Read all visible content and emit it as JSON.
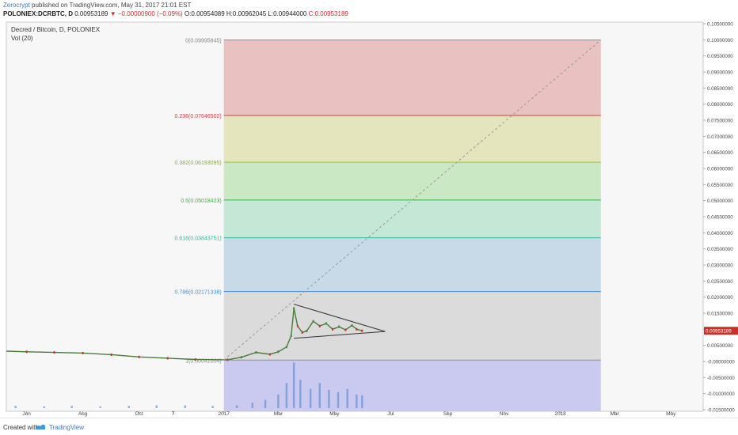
{
  "header": {
    "publisher": "Zerocrypt",
    "published_text": "published on TradingView.com, May 31, 2017 21:01 EST",
    "symbol": "POLONIEX:DCRBTC, D",
    "last": "0.00953189",
    "change": "▼ −0.00000900 (−0.09%)",
    "open": "O:0.00954089",
    "high": "H:0.00962045",
    "low": "L:0.00944000",
    "close": "C:0.00953189"
  },
  "legend": {
    "title": "Decred / Bitcoin, D, POLONIEX",
    "volume": "Vol (20)"
  },
  "footer": {
    "created_with": "Created with",
    "brand": "TradingView"
  },
  "chart_data": {
    "type": "candlestick",
    "title": "Decred / Bitcoin, D, POLONIEX",
    "price_axis": {
      "ylim": [
        -0.0155,
        0.1055
      ],
      "ticks": [
        0.105,
        0.1,
        0.095,
        0.09,
        0.085,
        0.08,
        0.075,
        0.07,
        0.065,
        0.06,
        0.055,
        0.05,
        0.045,
        0.04,
        0.035,
        0.03,
        0.025,
        0.02,
        0.015,
        0.01,
        0.005,
        0.0,
        -0.005,
        -0.01,
        -0.015
      ],
      "tick_labels": [
        "0.10500000",
        "0.10000000",
        "0.09500000",
        "0.09000000",
        "0.08500000",
        "0.08000000",
        "0.07500000",
        "0.07000000",
        "0.06500000",
        "0.06000000",
        "0.05500000",
        "0.05000000",
        "0.04500000",
        "0.04000000",
        "0.03500000",
        "0.03000000",
        "0.02500000",
        "0.02000000",
        "0.01500000",
        "0.01000000",
        "0.00500000",
        "-0.00000000",
        "-0.00500000",
        "-0.01000000",
        "-0.01500000"
      ],
      "last_price_label": "0.00953189",
      "last_price": 0.00953189,
      "last_price_color": "#c8302b"
    },
    "time_axis": {
      "xlim": [
        "2016-05-10",
        "2018-06-05"
      ],
      "ticks": [
        {
          "date": "2016-06-01",
          "label": "Jun"
        },
        {
          "date": "2016-08-01",
          "label": "Aug"
        },
        {
          "date": "2016-10-01",
          "label": "Oct"
        },
        {
          "date": "2016-11-07",
          "label": "7"
        },
        {
          "date": "2017-01-01",
          "label": "2017"
        },
        {
          "date": "2017-03-01",
          "label": "Mar"
        },
        {
          "date": "2017-05-01",
          "label": "May"
        },
        {
          "date": "2017-07-01",
          "label": "Jul"
        },
        {
          "date": "2017-09-01",
          "label": "Sep"
        },
        {
          "date": "2017-11-01",
          "label": "Nov"
        },
        {
          "date": "2018-01-01",
          "label": "2018"
        },
        {
          "date": "2018-03-01",
          "label": "Mar"
        },
        {
          "date": "2018-05-01",
          "label": "May"
        }
      ]
    },
    "fibonacci": {
      "start_date": "2017-01-01",
      "end_date": "2018-02-14",
      "levels": [
        {
          "ratio": "0",
          "value": 0.09995845,
          "label": "0(0.09995845)",
          "line": "#909090",
          "fill": "#e8bebe",
          "label_color": "#888888"
        },
        {
          "ratio": "0.236",
          "value": 0.07646502,
          "label": "0.236(0.07646502)",
          "line": "#d24040",
          "fill": "#e3e4b8",
          "label_color": "#d24040"
        },
        {
          "ratio": "0.382",
          "value": 0.06193095,
          "label": "0.382(0.06193095)",
          "line": "#9bc33a",
          "fill": "#c6e7c0",
          "label_color": "#8ab030"
        },
        {
          "ratio": "0.5",
          "value": 0.05018423,
          "label": "0.5(0.05018423)",
          "line": "#3fb14a",
          "fill": "#c2e6d3",
          "label_color": "#3fb14a"
        },
        {
          "ratio": "0.618",
          "value": 0.03843751,
          "label": "0.618(0.03843751)",
          "line": "#37b89a",
          "fill": "#c5d8e7",
          "label_color": "#37b89a"
        },
        {
          "ratio": "0.786",
          "value": 0.02171338,
          "label": "0.786(0.02171338)",
          "line": "#3d8fd6",
          "fill": "#d9d9d9",
          "label_color": "#3d8fd6"
        },
        {
          "ratio": "1",
          "value": 0.00041004,
          "label": "1(0.00041004)",
          "line": "#909090",
          "fill": "#c7c6ee",
          "label_color": "#888888"
        }
      ],
      "bottom_value": -0.0155
    },
    "trend_line": {
      "start": {
        "date": "2017-01-01",
        "value": 0.00041004
      },
      "end": {
        "date": "2018-02-14",
        "value": 0.09995845
      }
    },
    "triangle": {
      "upper": [
        {
          "date": "2017-03-18",
          "value": 0.0178
        },
        {
          "date": "2017-06-25",
          "value": 0.0093
        }
      ],
      "lower": [
        {
          "date": "2017-03-18",
          "value": 0.0072
        },
        {
          "date": "2017-06-25",
          "value": 0.0093
        }
      ]
    },
    "price_series": [
      {
        "date": "2016-05-10",
        "value": 0.0032
      },
      {
        "date": "2016-06-01",
        "value": 0.003
      },
      {
        "date": "2016-07-01",
        "value": 0.0028
      },
      {
        "date": "2016-08-01",
        "value": 0.0026
      },
      {
        "date": "2016-09-01",
        "value": 0.0021
      },
      {
        "date": "2016-10-01",
        "value": 0.0014
      },
      {
        "date": "2016-11-01",
        "value": 0.001
      },
      {
        "date": "2016-12-01",
        "value": 0.0006
      },
      {
        "date": "2017-01-05",
        "value": 0.0005
      },
      {
        "date": "2017-01-20",
        "value": 0.0013
      },
      {
        "date": "2017-02-05",
        "value": 0.0028
      },
      {
        "date": "2017-02-20",
        "value": 0.0022
      },
      {
        "date": "2017-03-01",
        "value": 0.003
      },
      {
        "date": "2017-03-10",
        "value": 0.0045
      },
      {
        "date": "2017-03-15",
        "value": 0.008
      },
      {
        "date": "2017-03-18",
        "value": 0.0165
      },
      {
        "date": "2017-03-22",
        "value": 0.011
      },
      {
        "date": "2017-03-27",
        "value": 0.009
      },
      {
        "date": "2017-04-01",
        "value": 0.0095
      },
      {
        "date": "2017-04-08",
        "value": 0.0125
      },
      {
        "date": "2017-04-15",
        "value": 0.011
      },
      {
        "date": "2017-04-22",
        "value": 0.0118
      },
      {
        "date": "2017-04-29",
        "value": 0.01
      },
      {
        "date": "2017-05-06",
        "value": 0.0108
      },
      {
        "date": "2017-05-13",
        "value": 0.0098
      },
      {
        "date": "2017-05-20",
        "value": 0.0112
      },
      {
        "date": "2017-05-25",
        "value": 0.01
      },
      {
        "date": "2017-05-31",
        "value": 0.00953
      }
    ],
    "volume_series": [
      {
        "date": "2016-05-20",
        "value": 0.05
      },
      {
        "date": "2016-06-20",
        "value": 0.04
      },
      {
        "date": "2016-07-20",
        "value": 0.05
      },
      {
        "date": "2016-08-20",
        "value": 0.04
      },
      {
        "date": "2016-09-20",
        "value": 0.05
      },
      {
        "date": "2016-10-20",
        "value": 0.06
      },
      {
        "date": "2016-11-20",
        "value": 0.06
      },
      {
        "date": "2016-12-20",
        "value": 0.05
      },
      {
        "date": "2017-01-15",
        "value": 0.06
      },
      {
        "date": "2017-02-01",
        "value": 0.12
      },
      {
        "date": "2017-02-15",
        "value": 0.18
      },
      {
        "date": "2017-03-01",
        "value": 0.3
      },
      {
        "date": "2017-03-10",
        "value": 0.55
      },
      {
        "date": "2017-03-18",
        "value": 1.0
      },
      {
        "date": "2017-03-25",
        "value": 0.62
      },
      {
        "date": "2017-04-05",
        "value": 0.42
      },
      {
        "date": "2017-04-15",
        "value": 0.55
      },
      {
        "date": "2017-04-25",
        "value": 0.4
      },
      {
        "date": "2017-05-05",
        "value": 0.35
      },
      {
        "date": "2017-05-15",
        "value": 0.42
      },
      {
        "date": "2017-05-25",
        "value": 0.3
      },
      {
        "date": "2017-05-31",
        "value": 0.28
      }
    ]
  }
}
